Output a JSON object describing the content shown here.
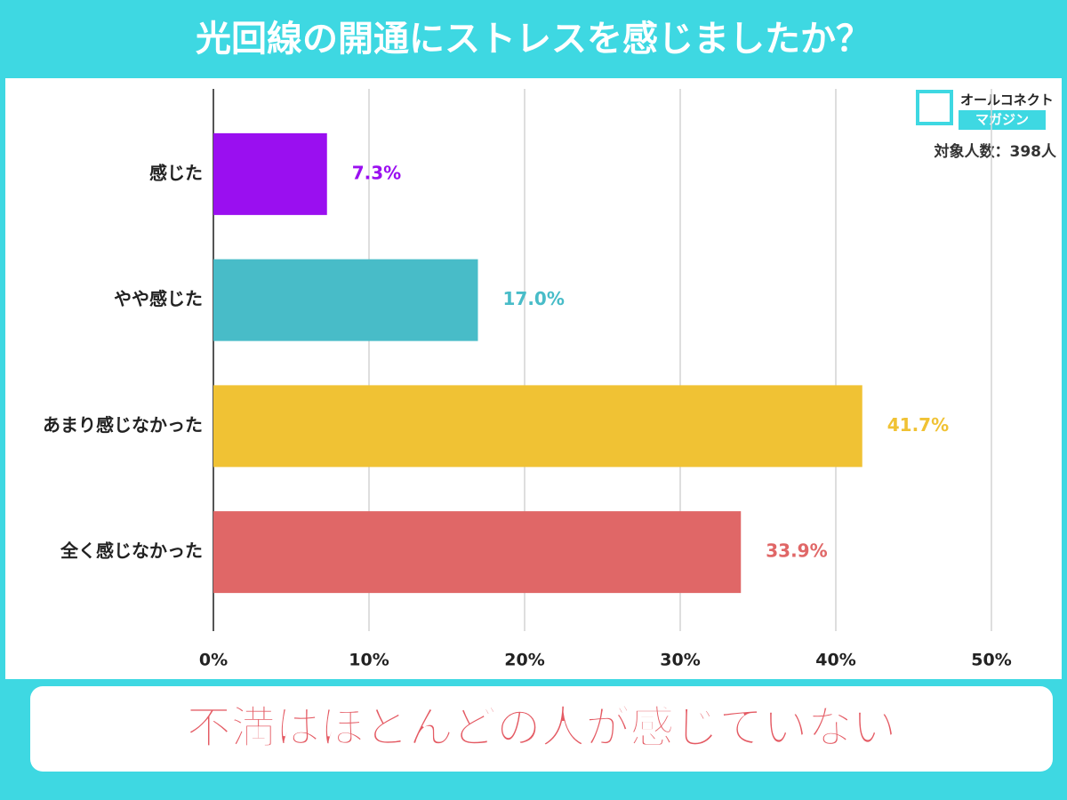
{
  "chart_data": {
    "type": "barh",
    "title": "光回線の開通にストレスを感じましたか？",
    "brand": [
      "オールコネクト",
      "マガジン"
    ],
    "annotation": "対象人数：398人",
    "conclusion": "不満はほとんどの人が感じていない",
    "categories": [
      "感じた",
      "やや感じた",
      "あまり感じなかった",
      "全く感じなかった"
    ],
    "values": [
      7.3,
      17.0,
      41.7,
      33.9
    ],
    "value_labels": [
      "7.3%",
      "17.0%",
      "41.7%",
      "33.9%"
    ],
    "colors": [
      "#9a0ff0",
      "#48bcc8",
      "#f0c234",
      "#e06767"
    ],
    "xlim": [
      0,
      50
    ],
    "xticks": [
      {
        "value": 0,
        "label": "0%"
      },
      {
        "value": 10,
        "label": "10%"
      },
      {
        "value": 20,
        "label": "20%"
      },
      {
        "value": 30,
        "label": "30%"
      },
      {
        "value": 40,
        "label": "40%"
      },
      {
        "value": 50,
        "label": "50%"
      }
    ],
    "grid": true
  }
}
